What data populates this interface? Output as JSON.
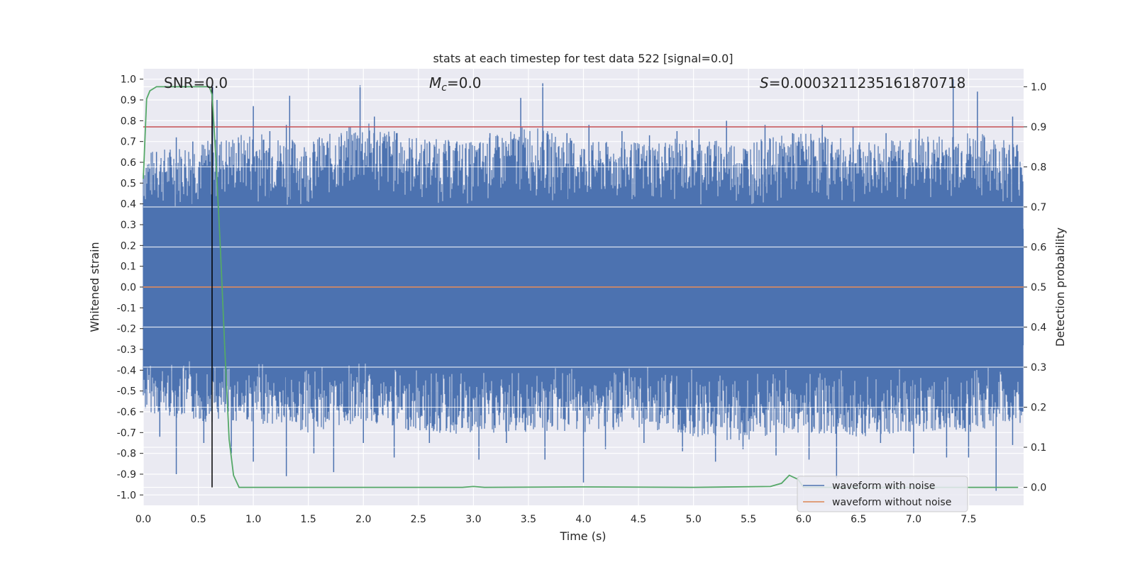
{
  "chart_data": {
    "type": "line",
    "title": "stats at each timestep for test data 522 [signal=0.0]",
    "xlabel": "Time (s)",
    "ylabel": "Whitened strain",
    "y2label": "Detection probability",
    "xlim": [
      0.0,
      8.0
    ],
    "ylim": [
      -1.05,
      1.05
    ],
    "y2lim": [
      -0.045,
      1.045
    ],
    "xticks": [
      "0.0",
      "0.5",
      "1.0",
      "1.5",
      "2.0",
      "2.5",
      "3.0",
      "3.5",
      "4.0",
      "4.5",
      "5.0",
      "5.5",
      "6.0",
      "6.5",
      "7.0",
      "7.5"
    ],
    "xtick_values": [
      0.0,
      0.5,
      1.0,
      1.5,
      2.0,
      2.5,
      3.0,
      3.5,
      4.0,
      4.5,
      5.0,
      5.5,
      6.0,
      6.5,
      7.0,
      7.5
    ],
    "yticks": [
      "1.0",
      "0.9",
      "0.8",
      "0.7",
      "0.6",
      "0.5",
      "0.4",
      "0.3",
      "0.2",
      "0.1",
      "0.0",
      "-0.1",
      "-0.2",
      "-0.3",
      "-0.4",
      "-0.5",
      "-0.6",
      "-0.7",
      "-0.8",
      "-0.9",
      "-1.0"
    ],
    "ytick_values": [
      1.0,
      0.9,
      0.8,
      0.7,
      0.6,
      0.5,
      0.4,
      0.3,
      0.2,
      0.1,
      0.0,
      -0.1,
      -0.2,
      -0.3,
      -0.4,
      -0.5,
      -0.6,
      -0.7,
      -0.8,
      -0.9,
      -1.0
    ],
    "y2ticks": [
      "1.0",
      "0.9",
      "0.8",
      "0.7",
      "0.6",
      "0.5",
      "0.4",
      "0.3",
      "0.2",
      "0.1",
      "0.0"
    ],
    "y2tick_values": [
      1.0,
      0.9,
      0.8,
      0.7,
      0.6,
      0.5,
      0.4,
      0.3,
      0.2,
      0.1,
      0.0
    ],
    "grid": true,
    "legend_position": "bottom-right",
    "annotations": {
      "snr": "SNR=0.0",
      "mc_symbol": "M",
      "mc_sub": "c",
      "mc_rest": "=0.0",
      "s_symbol": "S",
      "s_rest": "=0.0003211235161870718"
    },
    "threshold": {
      "y2": 0.9,
      "color": "#c44e52"
    },
    "marker_line": {
      "x": 0.625,
      "y2_range": [
        0.0,
        1.0
      ],
      "color": "#000000"
    },
    "series": [
      {
        "name": "waveform with noise",
        "color": "#4c72b0",
        "envelope_x": [
          0.0,
          0.5,
          1.0,
          1.5,
          2.0,
          2.5,
          3.0,
          3.5,
          4.0,
          4.5,
          5.0,
          5.5,
          6.0,
          6.5,
          7.0,
          7.5,
          8.0
        ],
        "envelope_upper": [
          0.65,
          0.7,
          0.75,
          0.7,
          0.8,
          0.72,
          0.7,
          0.78,
          0.7,
          0.7,
          0.72,
          0.7,
          0.75,
          0.7,
          0.72,
          0.75,
          0.7
        ],
        "envelope_lower": [
          -0.6,
          -0.65,
          -0.65,
          -0.7,
          -0.65,
          -0.7,
          -0.72,
          -0.7,
          -0.7,
          -0.68,
          -0.72,
          -0.75,
          -0.7,
          -0.72,
          -0.7,
          -0.7,
          -0.65
        ],
        "peaks": [
          {
            "x": 0.12,
            "y": 0.65
          },
          {
            "x": 0.3,
            "y": 0.72
          },
          {
            "x": 0.45,
            "y": 0.7
          },
          {
            "x": 0.63,
            "y": 0.97
          },
          {
            "x": 0.67,
            "y": 0.9
          },
          {
            "x": 1.0,
            "y": 0.87
          },
          {
            "x": 1.15,
            "y": 0.75
          },
          {
            "x": 1.3,
            "y": 0.78
          },
          {
            "x": 1.33,
            "y": 0.92
          },
          {
            "x": 1.6,
            "y": 0.72
          },
          {
            "x": 1.8,
            "y": 0.73
          },
          {
            "x": 1.97,
            "y": 0.97
          },
          {
            "x": 2.1,
            "y": 0.82
          },
          {
            "x": 2.3,
            "y": 0.74
          },
          {
            "x": 2.6,
            "y": 0.7
          },
          {
            "x": 2.85,
            "y": 0.7
          },
          {
            "x": 3.15,
            "y": 0.74
          },
          {
            "x": 3.43,
            "y": 0.91
          },
          {
            "x": 3.63,
            "y": 0.98
          },
          {
            "x": 3.85,
            "y": 0.74
          },
          {
            "x": 4.05,
            "y": 0.78
          },
          {
            "x": 4.35,
            "y": 0.75
          },
          {
            "x": 4.6,
            "y": 0.73
          },
          {
            "x": 4.85,
            "y": 0.75
          },
          {
            "x": 5.05,
            "y": 0.76
          },
          {
            "x": 5.3,
            "y": 0.8
          },
          {
            "x": 5.65,
            "y": 0.78
          },
          {
            "x": 5.9,
            "y": 0.74
          },
          {
            "x": 6.17,
            "y": 0.78
          },
          {
            "x": 6.45,
            "y": 0.77
          },
          {
            "x": 6.75,
            "y": 0.74
          },
          {
            "x": 7.05,
            "y": 0.76
          },
          {
            "x": 7.36,
            "y": 1.0
          },
          {
            "x": 7.58,
            "y": 0.94
          },
          {
            "x": 7.9,
            "y": 0.82
          }
        ],
        "troughs": [
          {
            "x": 0.15,
            "y": -0.72
          },
          {
            "x": 0.3,
            "y": -0.9
          },
          {
            "x": 0.55,
            "y": -0.75
          },
          {
            "x": 0.8,
            "y": -0.8
          },
          {
            "x": 1.0,
            "y": -0.84
          },
          {
            "x": 1.3,
            "y": -0.91
          },
          {
            "x": 1.55,
            "y": -0.8
          },
          {
            "x": 1.73,
            "y": -0.89
          },
          {
            "x": 2.0,
            "y": -0.75
          },
          {
            "x": 2.28,
            "y": -0.82
          },
          {
            "x": 2.6,
            "y": -0.75
          },
          {
            "x": 3.05,
            "y": -0.83
          },
          {
            "x": 3.3,
            "y": -0.75
          },
          {
            "x": 3.65,
            "y": -0.83
          },
          {
            "x": 4.0,
            "y": -0.94
          },
          {
            "x": 4.2,
            "y": -0.78
          },
          {
            "x": 4.55,
            "y": -0.75
          },
          {
            "x": 4.9,
            "y": -0.79
          },
          {
            "x": 5.2,
            "y": -0.84
          },
          {
            "x": 5.45,
            "y": -0.78
          },
          {
            "x": 5.75,
            "y": -0.81
          },
          {
            "x": 6.05,
            "y": -0.83
          },
          {
            "x": 6.3,
            "y": -0.92
          },
          {
            "x": 6.7,
            "y": -0.75
          },
          {
            "x": 7.0,
            "y": -0.8
          },
          {
            "x": 7.3,
            "y": -0.82
          },
          {
            "x": 7.5,
            "y": -0.82
          },
          {
            "x": 7.75,
            "y": -0.98
          },
          {
            "x": 7.9,
            "y": -0.76
          }
        ]
      },
      {
        "name": "waveform without noise",
        "color": "#dd8452",
        "x": [
          0.0,
          8.0
        ],
        "y": [
          0.0,
          0.0
        ]
      },
      {
        "name": "",
        "color": "#55a868",
        "axis": "y2",
        "x": [
          0.0,
          0.03,
          0.06,
          0.12,
          0.2,
          0.3,
          0.4,
          0.5,
          0.6,
          0.625,
          0.66,
          0.7,
          0.74,
          0.78,
          0.82,
          0.87,
          1.0,
          2.0,
          2.9,
          3.0,
          3.1,
          4.0,
          5.0,
          5.7,
          5.8,
          5.87,
          5.95,
          6.0,
          7.0,
          7.95
        ],
        "y": [
          0.77,
          0.97,
          0.99,
          1.0,
          1.0,
          1.0,
          1.0,
          1.0,
          1.0,
          0.98,
          0.82,
          0.6,
          0.35,
          0.12,
          0.03,
          0.0,
          0.0,
          0.0,
          0.0,
          0.002,
          0.0,
          0.001,
          0.0,
          0.002,
          0.01,
          0.03,
          0.02,
          0.0,
          0.0,
          0.0
        ]
      }
    ]
  }
}
